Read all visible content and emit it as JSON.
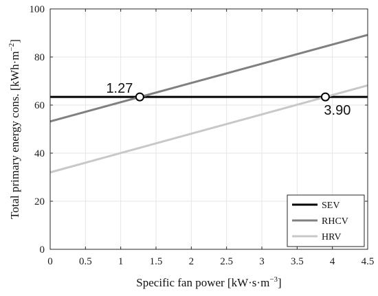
{
  "chart_data": {
    "type": "line",
    "xlabel": {
      "main": "Specific fan power [kW·s·m",
      "sup": "−3",
      "end": "]"
    },
    "ylabel": {
      "main": "Total primary energy cons. [kWh·m",
      "sup": "−2",
      "end": "]"
    },
    "xlim": [
      0,
      4.5
    ],
    "ylim": [
      0,
      100
    ],
    "xticks": [
      0,
      0.5,
      1,
      1.5,
      2,
      2.5,
      3,
      3.5,
      4,
      4.5
    ],
    "xtick_labels": [
      "0",
      "0.5",
      "1",
      "1.5",
      "2",
      "2.5",
      "3",
      "3.5",
      "4",
      "4.5"
    ],
    "yticks": [
      0,
      20,
      40,
      60,
      80,
      100
    ],
    "ytick_labels": [
      "0",
      "20",
      "40",
      "60",
      "80",
      "100"
    ],
    "grid": true,
    "legend_position": "bottom-right",
    "series": [
      {
        "name": "SEV",
        "color": "#000000",
        "x": [
          0,
          4.5
        ],
        "y": [
          63.4,
          63.4
        ]
      },
      {
        "name": "RHCV",
        "color": "#808080",
        "x": [
          0,
          4.5
        ],
        "y": [
          53.2,
          89.2
        ]
      },
      {
        "name": "HRV",
        "color": "#c8c8c8",
        "x": [
          0,
          4.5
        ],
        "y": [
          32.0,
          68.2
        ]
      }
    ],
    "annotations": [
      {
        "label": "1.27",
        "x": 1.27,
        "y": 63.4,
        "label_side": "above-left"
      },
      {
        "label": "3.90",
        "x": 3.9,
        "y": 63.4,
        "label_side": "below-right"
      }
    ]
  }
}
